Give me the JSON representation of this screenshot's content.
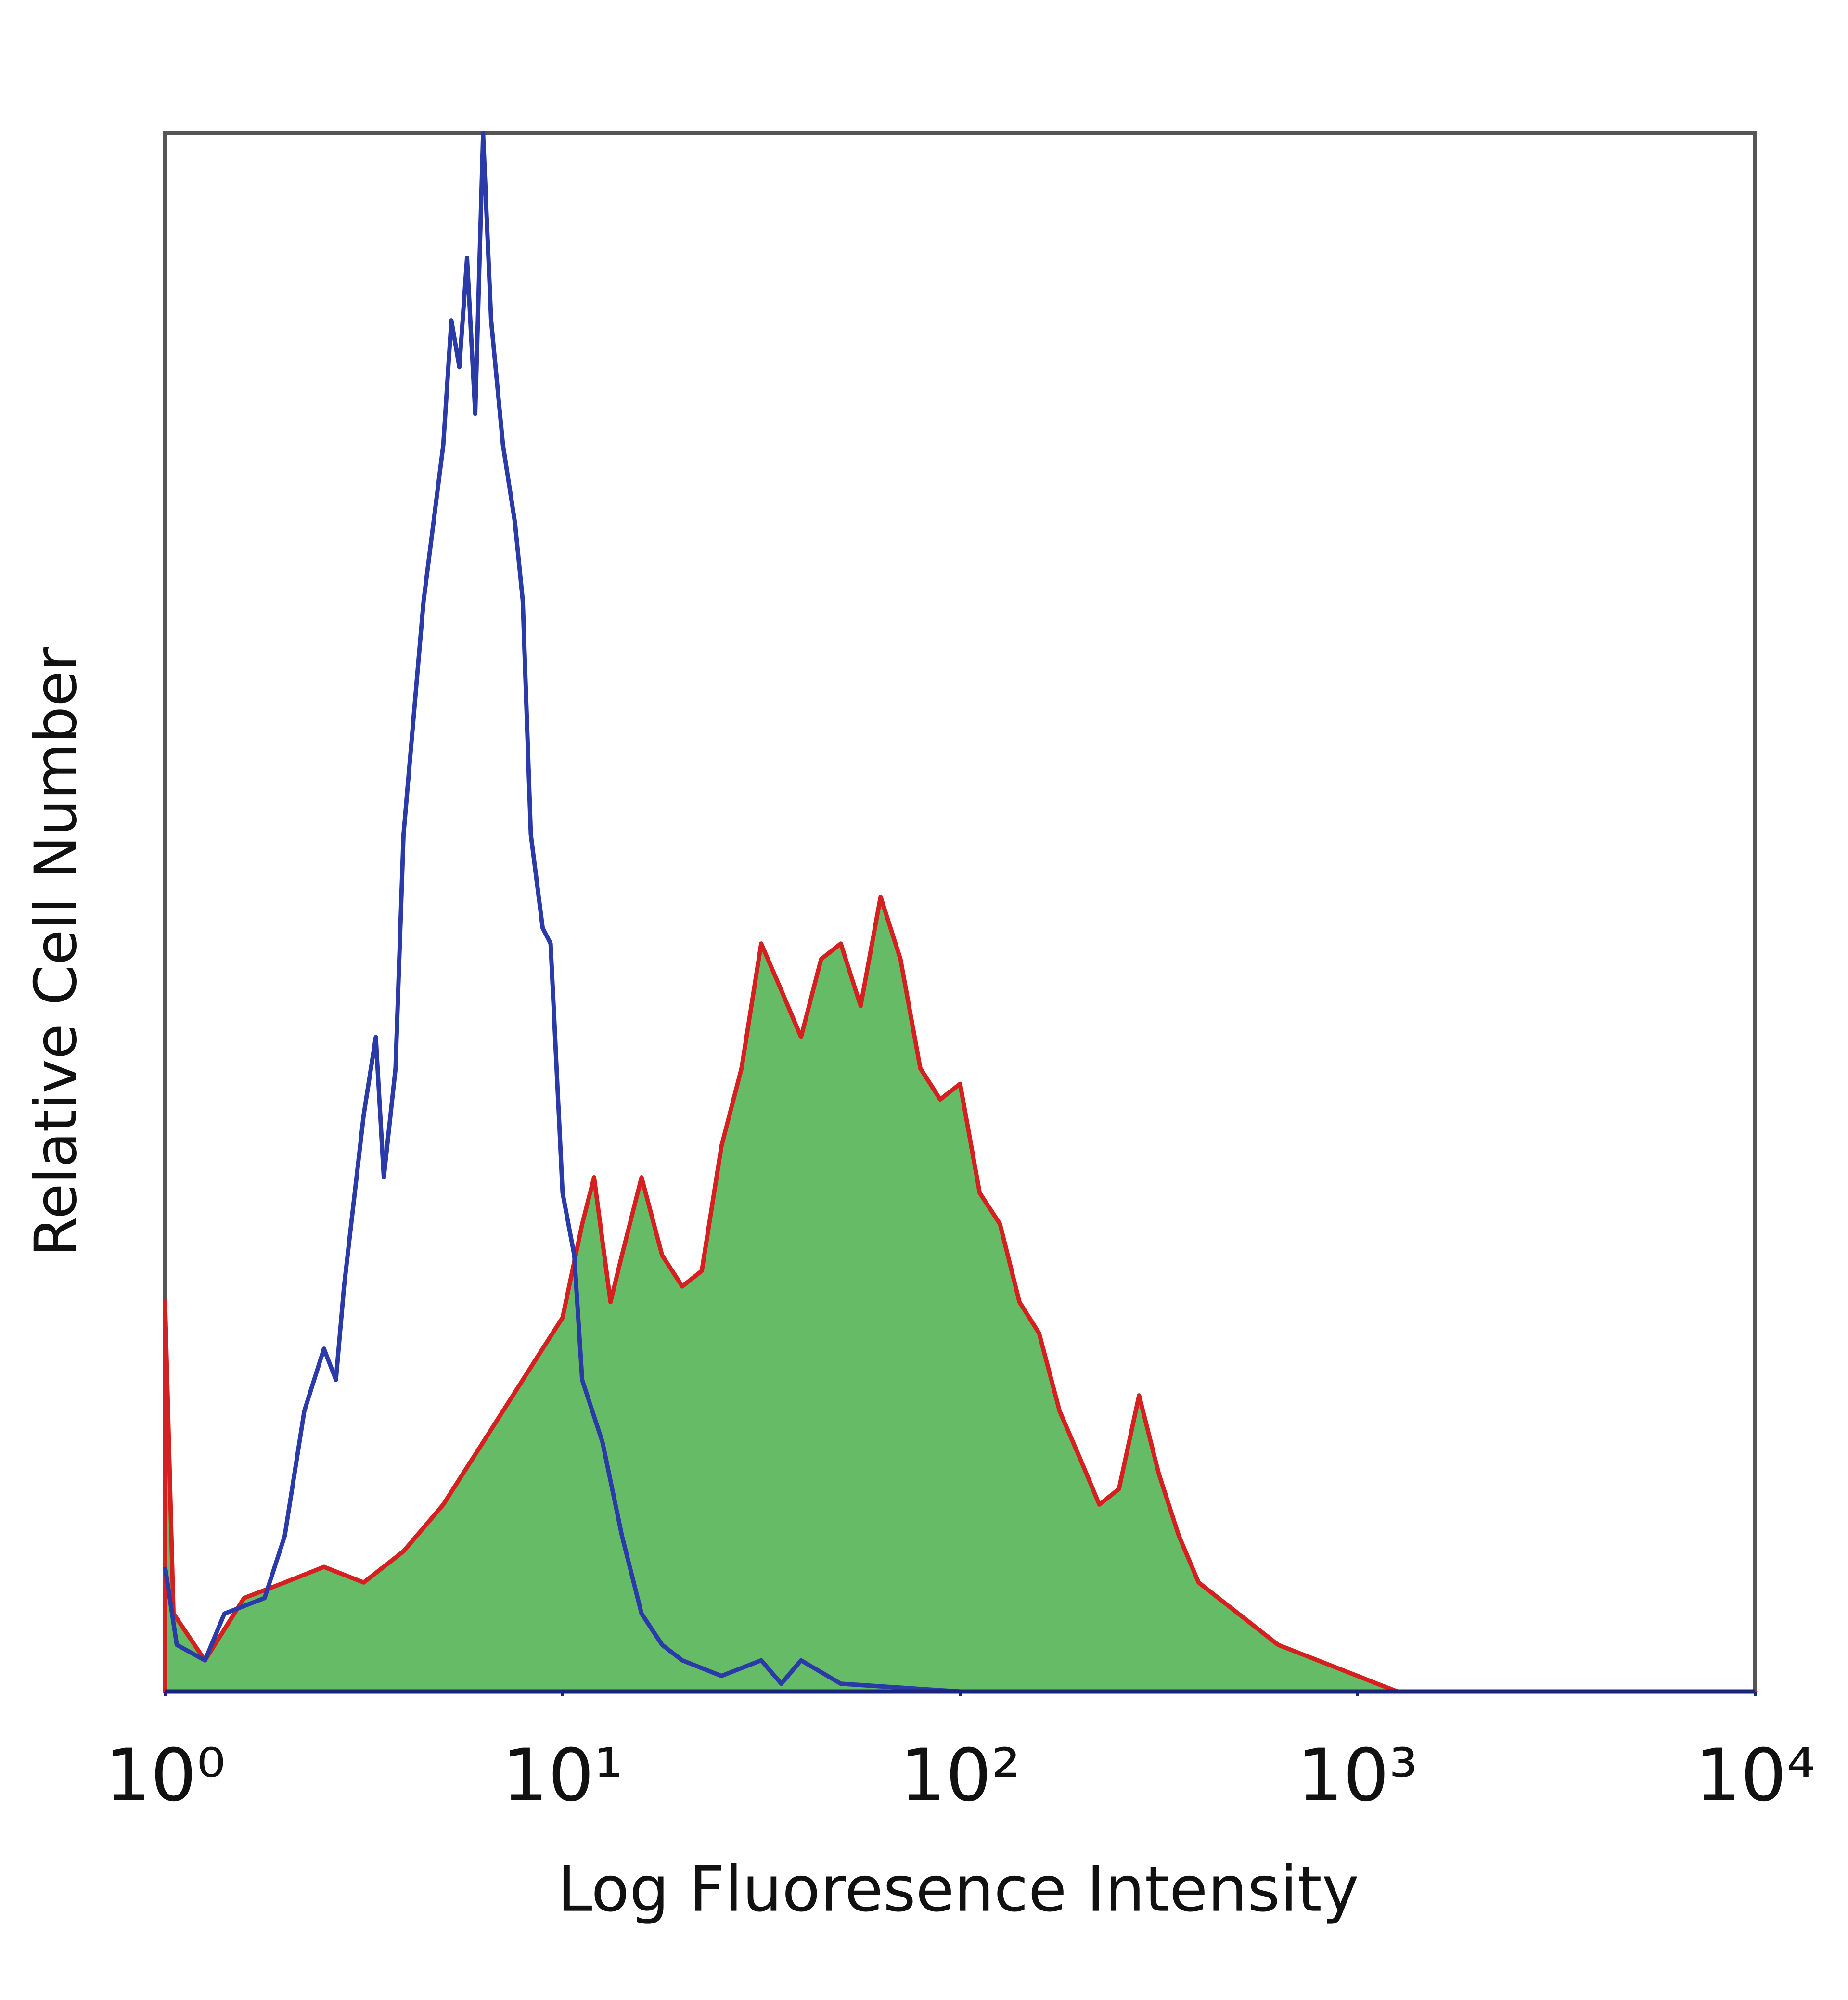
{
  "chart_data": {
    "type": "histogram-line",
    "xlabel": "Log Fluoresence Intensity",
    "ylabel": "Relative Cell Number",
    "xscale": "log",
    "xlim": [
      1,
      10000
    ],
    "ylim": [
      0,
      100
    ],
    "xticks": [
      {
        "value": 1,
        "label": "10⁰"
      },
      {
        "value": 10,
        "label": "10¹"
      },
      {
        "value": 100,
        "label": "10²"
      },
      {
        "value": 1000,
        "label": "10³"
      },
      {
        "value": 10000,
        "label": "10⁴"
      }
    ],
    "frame_color": "#555555",
    "axis_color": "#1a237e",
    "series": [
      {
        "color": "#d62020",
        "fill": "#66bb66",
        "x": [
          1,
          1.05,
          1.26,
          1.58,
          2.0,
          2.51,
          3.16,
          3.98,
          5.01,
          5.62,
          6.31,
          7.08,
          7.94,
          8.91,
          10,
          11.2,
          12,
          13.2,
          14.1,
          15.8,
          17.8,
          20,
          22.4,
          25.1,
          28.2,
          31.6,
          35.5,
          39.8,
          44.7,
          50.1,
          56.2,
          63.1,
          70.8,
          79.4,
          89.1,
          100,
          112,
          126,
          141,
          158,
          178,
          200,
          224,
          251,
          282,
          316,
          355,
          398,
          501,
          631,
          794,
          1000,
          1120,
          1260,
          10000
        ],
        "values": [
          25,
          5,
          2,
          6,
          7,
          8,
          7,
          9,
          12,
          14,
          16,
          18,
          20,
          22,
          24,
          30,
          33,
          25,
          28,
          33,
          28,
          26,
          27,
          35,
          40,
          48,
          45,
          42,
          47,
          48,
          44,
          51,
          47,
          40,
          38,
          39,
          32,
          30,
          25,
          23,
          18,
          15,
          12,
          13,
          19,
          14,
          10,
          7,
          5,
          3,
          2,
          1,
          0.5,
          0,
          0
        ]
      },
      {
        "color": "#2a3aa8",
        "x": [
          1,
          1.07,
          1.26,
          1.41,
          1.78,
          2.0,
          2.24,
          2.51,
          2.69,
          2.82,
          3.16,
          3.39,
          3.55,
          3.8,
          3.98,
          4.47,
          5.01,
          5.25,
          5.5,
          5.75,
          6.03,
          6.31,
          6.61,
          7.08,
          7.59,
          7.94,
          8.32,
          8.91,
          9.33,
          10,
          10.7,
          11.2,
          12.6,
          14.1,
          15.8,
          17.8,
          20,
          25.1,
          31.6,
          35.5,
          39.8,
          50.1,
          100,
          10000
        ],
        "values": [
          8,
          3,
          2,
          5,
          6,
          10,
          18,
          22,
          20,
          26,
          37,
          42,
          33,
          40,
          55,
          70,
          80,
          88,
          85,
          92,
          82,
          100,
          88,
          80,
          75,
          70,
          55,
          49,
          48,
          32,
          28,
          20,
          16,
          10,
          5,
          3,
          2,
          1,
          2,
          0.5,
          2,
          0.5,
          0,
          0
        ]
      }
    ]
  }
}
